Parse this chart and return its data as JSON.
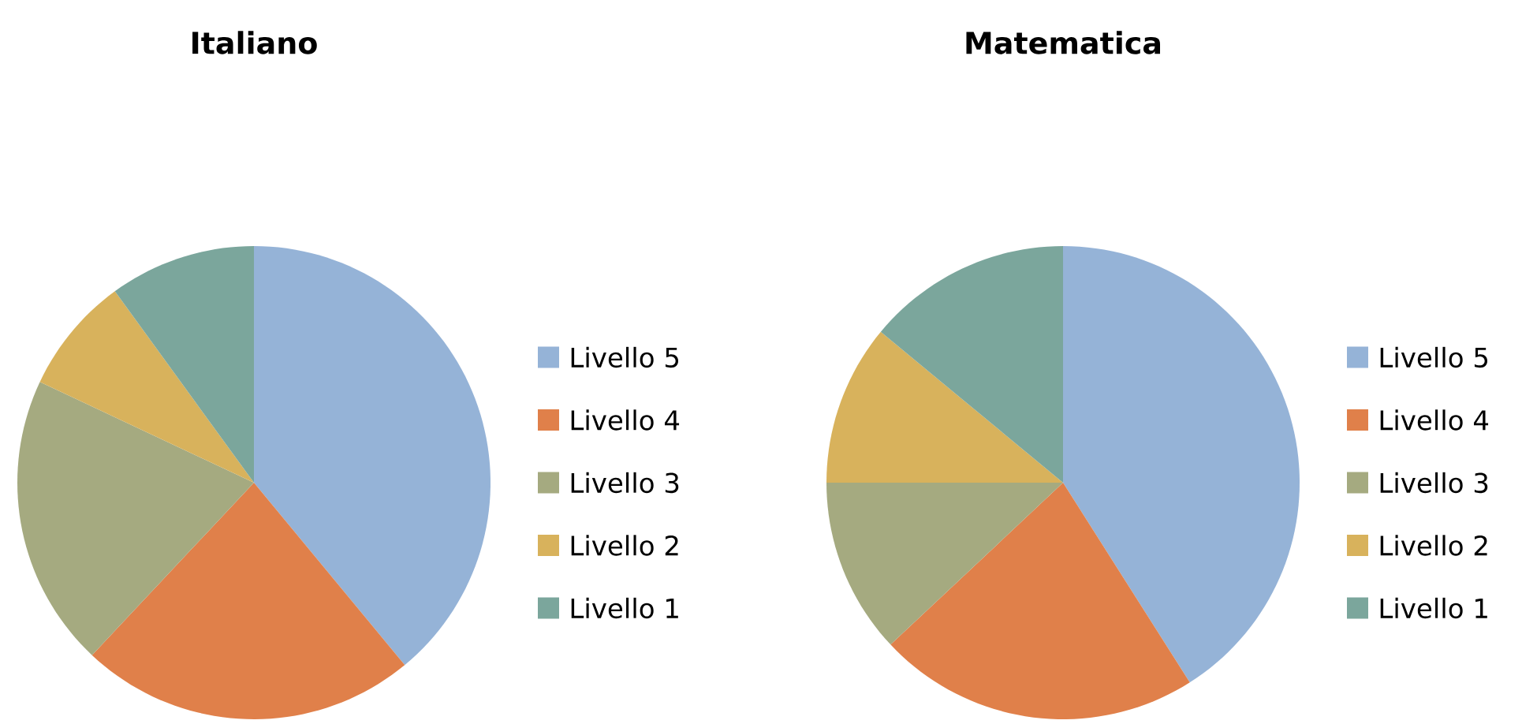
{
  "chart_data": [
    {
      "type": "pie",
      "title": "Italiano",
      "categories": [
        "Livello 5",
        "Livello 4",
        "Livello 3",
        "Livello 2",
        "Livello 1"
      ],
      "values": [
        39,
        23,
        20,
        8,
        10
      ],
      "colors": [
        "#95b3d7",
        "#e0804a",
        "#a5aa80",
        "#d8b25c",
        "#7ba69c"
      ],
      "legend": "right"
    },
    {
      "type": "pie",
      "title": "Matematica",
      "categories": [
        "Livello 5",
        "Livello 4",
        "Livello 3",
        "Livello 2",
        "Livello 1"
      ],
      "values": [
        41,
        22,
        12,
        11,
        14
      ],
      "colors": [
        "#95b3d7",
        "#e0804a",
        "#a5aa80",
        "#d8b25c",
        "#7ba69c"
      ],
      "legend": "right"
    }
  ]
}
